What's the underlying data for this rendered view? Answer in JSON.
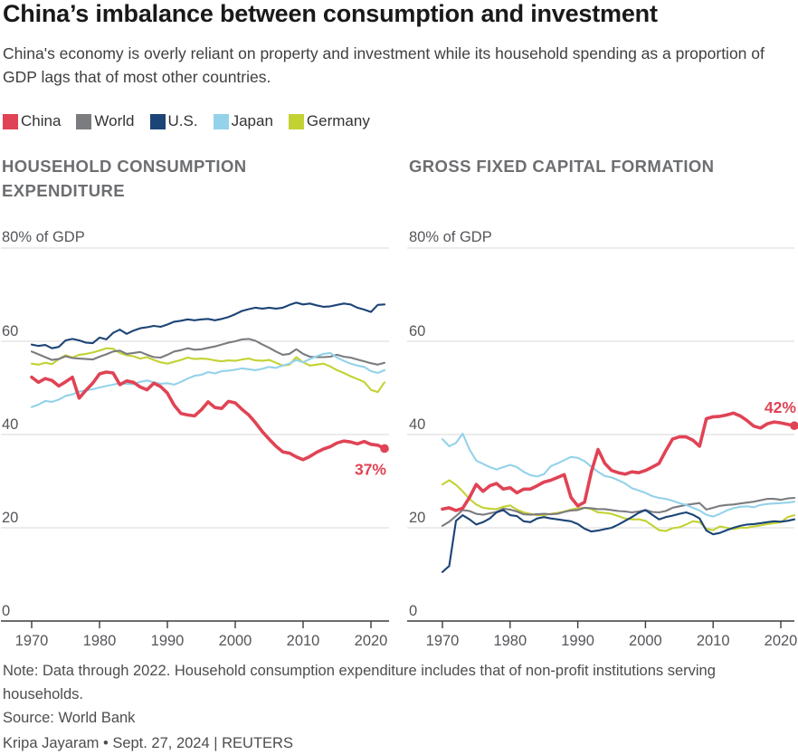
{
  "header": {
    "title": "China’s imbalance between consumption and investment",
    "subtitle": "China's economy is overly reliant on property and investment while its household spending as a proportion of GDP lags that of most other countries."
  },
  "legend": [
    {
      "label": "China",
      "color": "#e04355"
    },
    {
      "label": "World",
      "color": "#7b7c80"
    },
    {
      "label": "U.S.",
      "color": "#1c4476"
    },
    {
      "label": "Japan",
      "color": "#94d2ea"
    },
    {
      "label": "Germany",
      "color": "#c3d233"
    }
  ],
  "footer": {
    "note": "Note: Data through 2022. Household consumption expenditure includes that of non-profit institutions serving households.",
    "source": "Source: World Bank",
    "byline": "Kripa Jayaram • Sept. 27, 2024 | REUTERS"
  },
  "chart_data": [
    {
      "type": "line",
      "title": "HOUSEHOLD CONSUMPTION EXPENDITURE",
      "y_top_label": "80% of GDP",
      "ylabel": "% of GDP",
      "ylim": [
        0,
        80
      ],
      "grid_values": [
        80,
        60,
        40,
        20
      ],
      "y_tick_labels": [
        {
          "value": 60,
          "label": "60"
        },
        {
          "value": 40,
          "label": "40"
        },
        {
          "value": 20,
          "label": "20"
        },
        {
          "value": 0,
          "label": "0"
        }
      ],
      "x_start": 1970,
      "x_end": 2022,
      "x_ticks": [
        1970,
        1980,
        1990,
        2000,
        2010,
        2020
      ],
      "annotation": {
        "series": "China",
        "text": "37%",
        "placement": "below"
      },
      "series": [
        {
          "name": "Germany",
          "values": [
            55.2,
            55.0,
            55.4,
            55.1,
            56.2,
            57.0,
            56.5,
            57.1,
            57.3,
            57.6,
            58.0,
            58.5,
            58.4,
            57.5,
            57.0,
            56.8,
            56.3,
            56.6,
            56.0,
            55.5,
            55.2,
            55.6,
            56.0,
            56.5,
            56.2,
            56.3,
            56.2,
            55.9,
            55.7,
            55.9,
            55.8,
            56.1,
            56.3,
            55.9,
            55.8,
            56.0,
            55.4,
            54.8,
            55.0,
            56.6,
            55.5,
            54.8,
            55.0,
            55.2,
            54.6,
            53.8,
            53.2,
            52.5,
            51.9,
            51.3,
            49.6,
            49.1,
            51.2
          ]
        },
        {
          "name": "World",
          "values": [
            57.8,
            57.2,
            56.6,
            56.0,
            56.2,
            56.8,
            56.4,
            56.3,
            56.2,
            56.1,
            56.7,
            57.2,
            57.8,
            58.0,
            57.3,
            57.5,
            57.7,
            57.1,
            56.6,
            56.5,
            57.1,
            57.8,
            58.1,
            58.5,
            58.2,
            58.3,
            58.6,
            58.9,
            59.3,
            59.7,
            60.0,
            60.4,
            60.5,
            60.1,
            59.3,
            58.6,
            57.8,
            57.1,
            57.3,
            58.3,
            57.3,
            56.7,
            56.6,
            56.6,
            56.7,
            57.1,
            56.7,
            56.5,
            56.1,
            55.7,
            55.3,
            55.0,
            55.4
          ]
        },
        {
          "name": "Japan",
          "values": [
            45.9,
            46.4,
            47.2,
            47.0,
            47.5,
            48.3,
            48.6,
            49.2,
            49.5,
            49.7,
            50.1,
            50.4,
            50.7,
            51.0,
            50.9,
            50.8,
            51.3,
            51.6,
            51.2,
            50.9,
            51.0,
            50.7,
            51.3,
            52.0,
            52.6,
            52.8,
            53.4,
            53.1,
            53.6,
            53.7,
            53.9,
            54.2,
            54.0,
            53.8,
            54.1,
            54.5,
            54.3,
            54.8,
            55.2,
            56.0,
            55.5,
            56.2,
            56.8,
            57.3,
            57.5,
            56.5,
            55.8,
            55.2,
            54.8,
            54.5,
            53.6,
            53.2,
            53.8
          ]
        },
        {
          "name": "U.S.",
          "values": [
            59.3,
            59.0,
            59.2,
            58.5,
            58.8,
            60.2,
            60.5,
            60.2,
            59.7,
            59.6,
            60.8,
            60.4,
            61.8,
            62.5,
            61.6,
            62.3,
            62.8,
            63.0,
            63.3,
            63.1,
            63.6,
            64.2,
            64.4,
            64.7,
            64.5,
            64.7,
            64.8,
            64.5,
            64.8,
            65.2,
            65.8,
            66.5,
            66.9,
            67.2,
            67.0,
            67.2,
            67.0,
            67.2,
            67.8,
            68.3,
            67.9,
            68.1,
            67.7,
            67.4,
            67.5,
            67.8,
            68.1,
            67.9,
            67.2,
            66.8,
            66.3,
            67.8,
            67.9
          ]
        },
        {
          "name": "China",
          "values": [
            52.3,
            51.2,
            52.0,
            51.6,
            50.4,
            51.3,
            52.3,
            47.8,
            49.5,
            51.0,
            53.0,
            53.4,
            53.2,
            50.7,
            51.5,
            51.2,
            50.2,
            49.6,
            51.0,
            50.3,
            48.9,
            46.3,
            44.5,
            44.2,
            44.0,
            45.3,
            47.0,
            45.8,
            45.6,
            47.1,
            46.8,
            45.4,
            44.2,
            42.5,
            40.6,
            39.0,
            37.5,
            36.3,
            36.0,
            35.2,
            34.6,
            35.3,
            36.2,
            36.9,
            37.4,
            38.2,
            38.6,
            38.4,
            38.0,
            38.5,
            37.9,
            37.7,
            37.0
          ]
        }
      ]
    },
    {
      "type": "line",
      "title": "GROSS FIXED CAPITAL FORMATION",
      "y_top_label": "80% of GDP",
      "ylabel": "% of GDP",
      "ylim": [
        0,
        80
      ],
      "grid_values": [
        80,
        60,
        40,
        20
      ],
      "y_tick_labels": [
        {
          "value": 60,
          "label": "60"
        },
        {
          "value": 40,
          "label": "40"
        },
        {
          "value": 20,
          "label": "20"
        },
        {
          "value": 0,
          "label": "0"
        }
      ],
      "x_start": 1970,
      "x_end": 2022,
      "x_ticks": [
        1970,
        1980,
        1990,
        2000,
        2010,
        2020
      ],
      "annotation": {
        "series": "China",
        "text": "42%",
        "placement": "above"
      },
      "series": [
        {
          "name": "Germany",
          "values": [
            29.3,
            30.2,
            29.2,
            27.8,
            26.2,
            25.0,
            24.3,
            24.1,
            24.0,
            24.5,
            24.8,
            23.9,
            23.3,
            23.0,
            22.7,
            22.7,
            23.0,
            23.2,
            23.5,
            23.9,
            24.2,
            24.3,
            24.0,
            23.3,
            23.2,
            23.0,
            22.5,
            22.0,
            21.8,
            21.8,
            21.5,
            20.5,
            19.5,
            19.3,
            19.9,
            20.1,
            20.7,
            21.4,
            21.2,
            19.8,
            19.5,
            20.3,
            20.0,
            19.7,
            20.0,
            20.0,
            20.3,
            20.5,
            20.8,
            21.0,
            21.2,
            22.3,
            22.7
          ]
        },
        {
          "name": "World",
          "values": [
            20.4,
            21.3,
            22.5,
            23.8,
            23.6,
            23.0,
            22.8,
            23.1,
            23.4,
            24.1,
            23.9,
            23.5,
            22.9,
            22.8,
            22.9,
            23.0,
            22.9,
            23.0,
            23.4,
            23.7,
            23.8,
            24.3,
            24.2,
            24.0,
            24.0,
            23.8,
            23.6,
            23.5,
            23.3,
            23.5,
            23.8,
            23.4,
            23.3,
            23.6,
            24.3,
            24.6,
            24.9,
            25.1,
            25.3,
            23.9,
            24.3,
            24.7,
            24.9,
            25.0,
            25.2,
            25.4,
            25.6,
            25.9,
            26.2,
            26.2,
            26.0,
            26.3,
            26.4
          ]
        },
        {
          "name": "Japan",
          "values": [
            39.0,
            37.5,
            38.2,
            40.2,
            36.8,
            34.4,
            33.7,
            33.0,
            32.5,
            33.0,
            33.5,
            33.0,
            32.0,
            31.3,
            31.0,
            31.5,
            33.2,
            33.8,
            34.5,
            35.2,
            35.0,
            34.3,
            33.1,
            32.0,
            31.1,
            30.8,
            30.2,
            29.5,
            28.5,
            28.0,
            27.5,
            26.8,
            26.4,
            26.2,
            25.8,
            25.3,
            24.9,
            24.3,
            23.7,
            22.8,
            22.4,
            23.0,
            23.7,
            24.2,
            24.5,
            24.6,
            24.4,
            24.9,
            25.1,
            25.2,
            25.3,
            25.4,
            25.6
          ]
        },
        {
          "name": "U.S.",
          "values": [
            10.5,
            11.8,
            21.5,
            22.7,
            21.8,
            20.7,
            21.2,
            22.0,
            23.3,
            23.8,
            22.7,
            22.5,
            21.4,
            21.2,
            22.0,
            22.3,
            22.0,
            21.8,
            21.6,
            21.4,
            20.8,
            19.8,
            19.2,
            19.4,
            19.7,
            20.0,
            20.7,
            21.5,
            22.3,
            23.2,
            23.8,
            22.8,
            21.8,
            22.3,
            22.6,
            23.0,
            23.3,
            22.8,
            22.0,
            19.4,
            18.6,
            18.9,
            19.5,
            20.0,
            20.4,
            20.7,
            20.8,
            21.0,
            21.2,
            21.4,
            21.3,
            21.5,
            21.8
          ]
        },
        {
          "name": "China",
          "values": [
            24.0,
            24.3,
            23.7,
            24.2,
            26.5,
            29.3,
            27.8,
            29.0,
            29.5,
            28.3,
            28.6,
            27.5,
            28.3,
            28.3,
            29.0,
            29.8,
            30.2,
            30.8,
            31.4,
            26.5,
            24.7,
            25.5,
            32.0,
            36.8,
            33.8,
            32.3,
            31.8,
            31.5,
            32.0,
            31.8,
            32.3,
            33.0,
            33.8,
            36.5,
            39.0,
            39.5,
            39.5,
            38.8,
            37.5,
            43.4,
            43.8,
            43.9,
            44.2,
            44.6,
            44.0,
            43.0,
            41.8,
            41.4,
            42.3,
            42.7,
            42.5,
            42.2,
            41.9
          ]
        }
      ]
    }
  ]
}
